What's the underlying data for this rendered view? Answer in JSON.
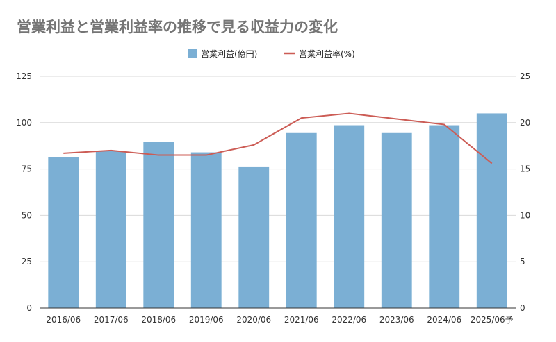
{
  "chart_data": {
    "type": "bar",
    "title": "営業利益と営業利益率の推移で見る収益力の変化",
    "xlabel": "",
    "ylabel": "",
    "categories": [
      "2016/06",
      "2017/06",
      "2018/06",
      "2019/06",
      "2020/06",
      "2021/06",
      "2022/06",
      "2023/06",
      "2024/06",
      "2025/06予"
    ],
    "series": [
      {
        "name": "営業利益(億円)",
        "type": "bar",
        "axis": "left",
        "color": "#7bafd4",
        "values": [
          81.5,
          84.7,
          89.7,
          84.0,
          76.0,
          94.4,
          98.6,
          94.4,
          98.6,
          105.0
        ]
      },
      {
        "name": "営業利益率(%)",
        "type": "line",
        "axis": "right",
        "color": "#cc5c55",
        "values": [
          16.7,
          17.0,
          16.5,
          16.5,
          17.6,
          20.5,
          21.0,
          20.4,
          19.8,
          15.6
        ]
      }
    ],
    "ylim": [
      0,
      125
    ],
    "y2lim": [
      0,
      25
    ],
    "yticks": [
      "0",
      "25",
      "50",
      "75",
      "100",
      "125"
    ],
    "y2ticks": [
      "0",
      "5",
      "10",
      "15",
      "20",
      "25"
    ],
    "grid": true,
    "legend_position": "top-center"
  }
}
